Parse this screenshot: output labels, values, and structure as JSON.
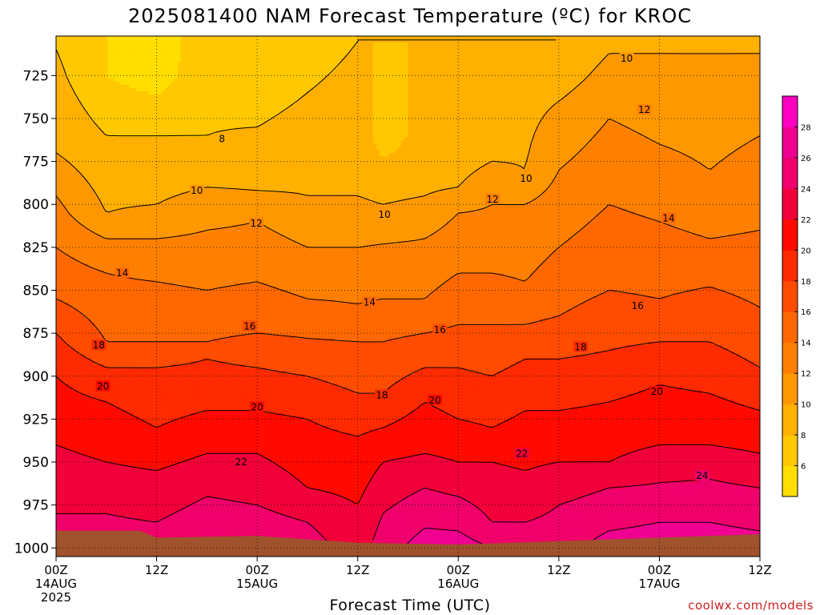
{
  "chart_data": {
    "type": "heatmap",
    "title": "2025081400 NAM Forecast Temperature (ºC) for KROC",
    "xlabel": "Forecast Time (UTC)",
    "ylabel": "",
    "x_ticks": [
      {
        "h": 0,
        "lines": [
          "00Z",
          "14AUG",
          "2025"
        ]
      },
      {
        "h": 12,
        "lines": [
          "12Z"
        ]
      },
      {
        "h": 24,
        "lines": [
          "00Z",
          "15AUG"
        ]
      },
      {
        "h": 36,
        "lines": [
          "12Z"
        ]
      },
      {
        "h": 48,
        "lines": [
          "00Z",
          "16AUG"
        ]
      },
      {
        "h": 60,
        "lines": [
          "12Z"
        ]
      },
      {
        "h": 72,
        "lines": [
          "00Z",
          "17AUG"
        ]
      },
      {
        "h": 84,
        "lines": [
          "12Z"
        ]
      }
    ],
    "y_ticks": [
      725,
      750,
      775,
      800,
      825,
      850,
      875,
      900,
      925,
      950,
      975,
      1000
    ],
    "ylim": [
      1005,
      702
    ],
    "xlim_hours": [
      0,
      84
    ],
    "colorbar": {
      "levels": [
        4,
        6,
        8,
        10,
        12,
        14,
        16,
        18,
        20,
        22,
        24,
        26,
        28,
        30
      ],
      "tick_labels": [
        6,
        8,
        10,
        12,
        14,
        16,
        18,
        20,
        22,
        24,
        26,
        28
      ],
      "colors": [
        "#ffde00",
        "#ffc800",
        "#ffb000",
        "#ff9800",
        "#ff8000",
        "#ff6800",
        "#ff4c00",
        "#ff2a00",
        "#ff0a00",
        "#f2003a",
        "#f0006a",
        "#ef0090",
        "#ff00c0"
      ]
    },
    "contour_labels": [
      {
        "h": 19.8,
        "p": 762,
        "text": "8"
      },
      {
        "h": 16.8,
        "p": 792,
        "text": "10"
      },
      {
        "h": 39.2,
        "p": 806,
        "text": "10"
      },
      {
        "h": 56.1,
        "p": 785,
        "text": "10"
      },
      {
        "h": 68.1,
        "p": 715,
        "text": "10"
      },
      {
        "h": 23.9,
        "p": 811,
        "text": "12"
      },
      {
        "h": 52.1,
        "p": 797,
        "text": "12"
      },
      {
        "h": 70.2,
        "p": 745,
        "text": "12"
      },
      {
        "h": 7.9,
        "p": 840,
        "text": "14"
      },
      {
        "h": 37.4,
        "p": 857,
        "text": "14"
      },
      {
        "h": 73.1,
        "p": 808,
        "text": "14"
      },
      {
        "h": 23.1,
        "p": 871,
        "text": "16"
      },
      {
        "h": 45.8,
        "p": 873,
        "text": "16"
      },
      {
        "h": 69.4,
        "p": 859,
        "text": "16"
      },
      {
        "h": 5.1,
        "p": 882,
        "text": "18"
      },
      {
        "h": 38.9,
        "p": 911,
        "text": "18"
      },
      {
        "h": 62.6,
        "p": 883,
        "text": "18"
      },
      {
        "h": 5.6,
        "p": 906,
        "text": "20"
      },
      {
        "h": 24.0,
        "p": 918,
        "text": "20"
      },
      {
        "h": 45.2,
        "p": 914,
        "text": "20"
      },
      {
        "h": 71.7,
        "p": 909,
        "text": "20"
      },
      {
        "h": 22.1,
        "p": 950,
        "text": "22"
      },
      {
        "h": 55.6,
        "p": 945,
        "text": "22"
      },
      {
        "h": 77.1,
        "p": 958,
        "text": "24"
      }
    ],
    "pressure_profiles": [
      {
        "h": 0,
        "t": [
          [
            710,
            8
          ],
          [
            770,
            10
          ],
          [
            795,
            12
          ],
          [
            825,
            14
          ],
          [
            855,
            16
          ],
          [
            875,
            18
          ],
          [
            900,
            20
          ],
          [
            940,
            22
          ],
          [
            980,
            24
          ],
          [
            1000,
            25
          ]
        ]
      },
      {
        "h": 6,
        "t": [
          [
            725,
            6
          ],
          [
            760,
            8
          ],
          [
            805,
            10
          ],
          [
            820,
            12
          ],
          [
            840,
            14
          ],
          [
            880,
            16
          ],
          [
            895,
            18
          ],
          [
            915,
            20
          ],
          [
            950,
            22
          ],
          [
            980,
            24
          ],
          [
            1000,
            25
          ]
        ]
      },
      {
        "h": 12,
        "t": [
          [
            725,
            5
          ],
          [
            760,
            8
          ],
          [
            800,
            10
          ],
          [
            820,
            12
          ],
          [
            845,
            14
          ],
          [
            880,
            16
          ],
          [
            895,
            18
          ],
          [
            930,
            20
          ],
          [
            955,
            22
          ],
          [
            985,
            24
          ],
          [
            1000,
            25
          ]
        ]
      },
      {
        "h": 18,
        "t": [
          [
            705,
            7
          ],
          [
            760,
            8
          ],
          [
            790,
            10
          ],
          [
            815,
            12
          ],
          [
            850,
            14
          ],
          [
            880,
            16
          ],
          [
            890,
            18
          ],
          [
            920,
            20
          ],
          [
            945,
            22
          ],
          [
            970,
            24
          ],
          [
            1000,
            26
          ]
        ]
      },
      {
        "h": 24,
        "t": [
          [
            705,
            6
          ],
          [
            755,
            8
          ],
          [
            792,
            10
          ],
          [
            810,
            12
          ],
          [
            845,
            14
          ],
          [
            875,
            16
          ],
          [
            895,
            18
          ],
          [
            920,
            20
          ],
          [
            945,
            22
          ],
          [
            975,
            24
          ],
          [
            1000,
            26
          ]
        ]
      },
      {
        "h": 30,
        "t": [
          [
            705,
            7
          ],
          [
            735,
            8
          ],
          [
            795,
            10
          ],
          [
            825,
            12
          ],
          [
            855,
            14
          ],
          [
            878,
            16
          ],
          [
            900,
            18
          ],
          [
            925,
            20
          ],
          [
            965,
            22
          ],
          [
            985,
            24
          ],
          [
            1000,
            25
          ]
        ]
      },
      {
        "h": 36,
        "t": [
          [
            705,
            8
          ],
          [
            745,
            9
          ],
          [
            795,
            10
          ],
          [
            825,
            12
          ],
          [
            858,
            14
          ],
          [
            880,
            16
          ],
          [
            910,
            18
          ],
          [
            935,
            20
          ],
          [
            975,
            22
          ],
          [
            1000,
            23
          ]
        ]
      },
      {
        "h": 39,
        "t": [
          [
            705,
            8
          ],
          [
            760,
            7
          ],
          [
            800,
            10
          ],
          [
            823,
            12
          ],
          [
            855,
            14
          ],
          [
            880,
            16
          ],
          [
            910,
            18
          ],
          [
            930,
            20
          ],
          [
            950,
            22
          ],
          [
            980,
            24
          ],
          [
            1000,
            25
          ]
        ]
      },
      {
        "h": 44,
        "t": [
          [
            705,
            8
          ],
          [
            780,
            9
          ],
          [
            795,
            10
          ],
          [
            820,
            12
          ],
          [
            855,
            14
          ],
          [
            875,
            16
          ],
          [
            895,
            18
          ],
          [
            915,
            20
          ],
          [
            945,
            22
          ],
          [
            965,
            24
          ],
          [
            1000,
            27
          ]
        ]
      },
      {
        "h": 48,
        "t": [
          [
            705,
            8
          ],
          [
            770,
            9
          ],
          [
            790,
            10
          ],
          [
            805,
            12
          ],
          [
            840,
            14
          ],
          [
            870,
            16
          ],
          [
            895,
            18
          ],
          [
            925,
            20
          ],
          [
            950,
            22
          ],
          [
            970,
            24
          ],
          [
            1000,
            27
          ]
        ]
      },
      {
        "h": 52,
        "t": [
          [
            705,
            8
          ],
          [
            740,
            9
          ],
          [
            775,
            10
          ],
          [
            800,
            12
          ],
          [
            840,
            14
          ],
          [
            870,
            16
          ],
          [
            900,
            18
          ],
          [
            930,
            20
          ],
          [
            950,
            22
          ],
          [
            985,
            24
          ],
          [
            1000,
            26
          ]
        ]
      },
      {
        "h": 56,
        "t": [
          [
            705,
            8
          ],
          [
            720,
            9
          ],
          [
            780,
            10
          ],
          [
            800,
            12
          ],
          [
            845,
            14
          ],
          [
            870,
            16
          ],
          [
            890,
            18
          ],
          [
            920,
            20
          ],
          [
            955,
            22
          ],
          [
            985,
            24
          ],
          [
            1000,
            25
          ]
        ]
      },
      {
        "h": 60,
        "t": [
          [
            705,
            8
          ],
          [
            725,
            9
          ],
          [
            740,
            10
          ],
          [
            780,
            12
          ],
          [
            825,
            14
          ],
          [
            865,
            16
          ],
          [
            890,
            18
          ],
          [
            920,
            20
          ],
          [
            950,
            22
          ],
          [
            975,
            24
          ],
          [
            1000,
            25
          ]
        ]
      },
      {
        "h": 66,
        "t": [
          [
            705,
            9
          ],
          [
            712,
            10
          ],
          [
            750,
            12
          ],
          [
            800,
            14
          ],
          [
            850,
            16
          ],
          [
            885,
            18
          ],
          [
            915,
            20
          ],
          [
            950,
            22
          ],
          [
            965,
            24
          ],
          [
            990,
            26
          ],
          [
            1000,
            27
          ]
        ]
      },
      {
        "h": 72,
        "t": [
          [
            705,
            9
          ],
          [
            712,
            10
          ],
          [
            765,
            12
          ],
          [
            810,
            14
          ],
          [
            855,
            16
          ],
          [
            880,
            18
          ],
          [
            905,
            20
          ],
          [
            940,
            22
          ],
          [
            962,
            24
          ],
          [
            985,
            26
          ],
          [
            1000,
            27
          ]
        ]
      },
      {
        "h": 78,
        "t": [
          [
            705,
            9
          ],
          [
            712,
            10
          ],
          [
            780,
            12
          ],
          [
            820,
            14
          ],
          [
            848,
            16
          ],
          [
            880,
            18
          ],
          [
            910,
            20
          ],
          [
            940,
            22
          ],
          [
            960,
            24
          ],
          [
            985,
            26
          ],
          [
            1000,
            27
          ]
        ]
      },
      {
        "h": 84,
        "t": [
          [
            705,
            9
          ],
          [
            712,
            10
          ],
          [
            760,
            12
          ],
          [
            815,
            14
          ],
          [
            860,
            16
          ],
          [
            895,
            18
          ],
          [
            920,
            20
          ],
          [
            945,
            22
          ],
          [
            965,
            24
          ],
          [
            990,
            26
          ],
          [
            1000,
            27
          ]
        ]
      }
    ],
    "ground_surface": [
      {
        "h": 0,
        "p": 990
      },
      {
        "h": 10,
        "p": 990
      },
      {
        "h": 12,
        "p": 994
      },
      {
        "h": 24,
        "p": 993
      },
      {
        "h": 36,
        "p": 997
      },
      {
        "h": 48,
        "p": 998
      },
      {
        "h": 60,
        "p": 996
      },
      {
        "h": 72,
        "p": 994
      },
      {
        "h": 84,
        "p": 992
      }
    ],
    "ground_color": "#a0522d"
  },
  "credit": "coolwx.com/models"
}
